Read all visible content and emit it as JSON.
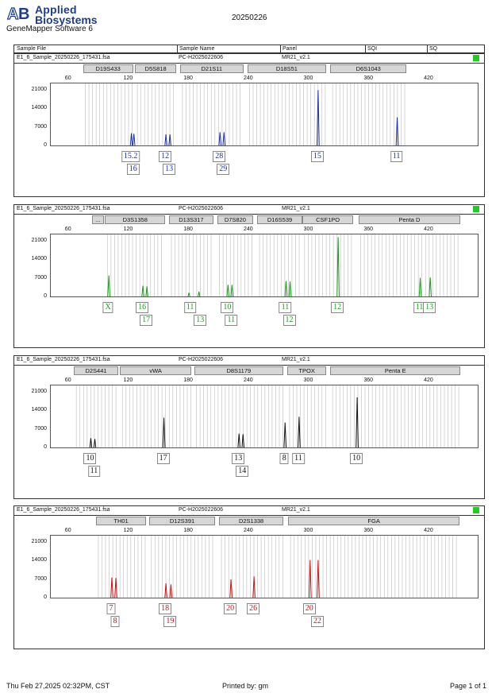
{
  "header": {
    "brand_line1": "Applied",
    "brand_line2": "Biosystems",
    "software": "GeneMapper Software 6",
    "title": "20250226"
  },
  "table_header": {
    "sample_file": "Sample File",
    "sample_name": "Sample Name",
    "panel": "Panel",
    "sqi": "SQI",
    "sq": "SQ"
  },
  "x_axis": {
    "ticks": [
      60,
      120,
      180,
      240,
      300,
      360,
      420
    ],
    "range": [
      42,
      470
    ]
  },
  "y_axis": {
    "ticks": [
      "21000",
      "14000",
      "7000",
      "0"
    ],
    "max": 24000
  },
  "panels": [
    {
      "file": "E1_6_Sample_20250226_175431.fsa",
      "name": "PC-H2025022606",
      "panel": "MR21_v2.1",
      "sq": true,
      "color": "#1a2faa",
      "markers": [
        {
          "label": "D19S433",
          "start": 75,
          "end": 125
        },
        {
          "label": "D5S818",
          "start": 127,
          "end": 168
        },
        {
          "label": "D21S11",
          "start": 172,
          "end": 235
        },
        {
          "label": "D18S51",
          "start": 239,
          "end": 318
        },
        {
          "label": "D6S1043",
          "start": 322,
          "end": 398
        }
      ],
      "peaks": [
        {
          "bp": 122.5,
          "h": 5200
        },
        {
          "bp": 125,
          "h": 5000
        },
        {
          "bp": 157,
          "h": 4800
        },
        {
          "bp": 161,
          "h": 4800
        },
        {
          "bp": 211,
          "h": 5600
        },
        {
          "bp": 215,
          "h": 5600
        },
        {
          "bp": 309,
          "h": 21500
        },
        {
          "bp": 388,
          "h": 11200
        }
      ],
      "alleles": [
        {
          "label": "15.2",
          "bp": 122.5,
          "row": 0
        },
        {
          "label": "16",
          "bp": 125,
          "row": 1
        },
        {
          "label": "12",
          "bp": 157,
          "row": 0
        },
        {
          "label": "13",
          "bp": 161,
          "row": 1
        },
        {
          "label": "28",
          "bp": 211,
          "row": 0
        },
        {
          "label": "29",
          "bp": 215,
          "row": 1
        },
        {
          "label": "15",
          "bp": 309,
          "row": 0
        },
        {
          "label": "11",
          "bp": 388,
          "row": 0
        }
      ]
    },
    {
      "file": "E1_6_Sample_20250226_175431.fsa",
      "name": "PC-H2025022606",
      "panel": "MR21_v2.1",
      "sq": true,
      "color": "#1a9a1a",
      "markers": [
        {
          "label": "...",
          "start": 84,
          "end": 96
        },
        {
          "label": "D3S1358",
          "start": 97,
          "end": 157
        },
        {
          "label": "D13S317",
          "start": 161,
          "end": 205
        },
        {
          "label": "D7S820",
          "start": 209,
          "end": 245
        },
        {
          "label": "D16S539",
          "start": 249,
          "end": 294
        },
        {
          "label": "CSF1PO",
          "start": 294,
          "end": 345
        },
        {
          "label": "Penta D",
          "start": 350,
          "end": 452
        }
      ],
      "peaks": [
        {
          "bp": 100,
          "h": 8500
        },
        {
          "bp": 134,
          "h": 4600
        },
        {
          "bp": 138,
          "h": 4400
        },
        {
          "bp": 180,
          "h": 2000
        },
        {
          "bp": 190,
          "h": 2400
        },
        {
          "bp": 219,
          "h": 5000
        },
        {
          "bp": 223,
          "h": 5000
        },
        {
          "bp": 277,
          "h": 6400
        },
        {
          "bp": 281,
          "h": 6200
        },
        {
          "bp": 329,
          "h": 23000
        },
        {
          "bp": 411,
          "h": 7600
        },
        {
          "bp": 421,
          "h": 7800
        }
      ],
      "alleles": [
        {
          "label": "X",
          "bp": 100,
          "row": 0
        },
        {
          "label": "16",
          "bp": 134,
          "row": 0
        },
        {
          "label": "17",
          "bp": 138,
          "row": 1
        },
        {
          "label": "11",
          "bp": 182,
          "row": 0
        },
        {
          "label": "13",
          "bp": 192,
          "row": 1
        },
        {
          "label": "10",
          "bp": 219,
          "row": 0
        },
        {
          "label": "11",
          "bp": 223,
          "row": 1
        },
        {
          "label": "11",
          "bp": 277,
          "row": 0
        },
        {
          "label": "12",
          "bp": 281,
          "row": 1
        },
        {
          "label": "12",
          "bp": 329,
          "row": 0
        },
        {
          "label": "11",
          "bp": 411,
          "row": 0
        },
        {
          "label": "13",
          "bp": 421,
          "row": 0
        }
      ]
    },
    {
      "file": "E1_6_Sample_20250226_175431.fsa",
      "name": "PC-H2025022606",
      "panel": "MR21_v2.1",
      "sq": false,
      "color": "#111111",
      "markers": [
        {
          "label": "D2S441",
          "start": 66,
          "end": 110
        },
        {
          "label": "vWA",
          "start": 112,
          "end": 183
        },
        {
          "label": "D8S1179",
          "start": 186,
          "end": 275
        },
        {
          "label": "TPOX",
          "start": 279,
          "end": 318
        },
        {
          "label": "Penta E",
          "start": 322,
          "end": 452
        }
      ],
      "peaks": [
        {
          "bp": 82,
          "h": 4100
        },
        {
          "bp": 86,
          "h": 3800
        },
        {
          "bp": 155,
          "h": 11800
        },
        {
          "bp": 230,
          "h": 5800
        },
        {
          "bp": 234,
          "h": 5600
        },
        {
          "bp": 276,
          "h": 10000
        },
        {
          "bp": 290,
          "h": 12200
        },
        {
          "bp": 348,
          "h": 19500
        }
      ],
      "alleles": [
        {
          "label": "10",
          "bp": 82,
          "row": 0
        },
        {
          "label": "11",
          "bp": 86,
          "row": 1
        },
        {
          "label": "17",
          "bp": 155,
          "row": 0
        },
        {
          "label": "13",
          "bp": 230,
          "row": 0
        },
        {
          "label": "14",
          "bp": 234,
          "row": 1
        },
        {
          "label": "8",
          "bp": 276,
          "row": 0
        },
        {
          "label": "11",
          "bp": 290,
          "row": 0
        },
        {
          "label": "10",
          "bp": 348,
          "row": 0
        }
      ]
    },
    {
      "file": "E1_6_Sample_20250226_175431.fsa",
      "name": "PC-H2025022606",
      "panel": "MR21_v2.1",
      "sq": true,
      "color": "#cc1111",
      "markers": [
        {
          "label": "TH01",
          "start": 88,
          "end": 138
        },
        {
          "label": "D12S391",
          "start": 141,
          "end": 207
        },
        {
          "label": "D2S1338",
          "start": 211,
          "end": 275
        },
        {
          "label": "FGA",
          "start": 280,
          "end": 451
        }
      ],
      "peaks": [
        {
          "bp": 103,
          "h": 8200
        },
        {
          "bp": 107,
          "h": 8000
        },
        {
          "bp": 157,
          "h": 6000
        },
        {
          "bp": 162,
          "h": 5600
        },
        {
          "bp": 222,
          "h": 7500
        },
        {
          "bp": 245,
          "h": 8600
        },
        {
          "bp": 301,
          "h": 14800
        },
        {
          "bp": 309,
          "h": 14800
        }
      ],
      "alleles": [
        {
          "label": "7",
          "bp": 103,
          "row": 0
        },
        {
          "label": "8",
          "bp": 107,
          "row": 1
        },
        {
          "label": "18",
          "bp": 157,
          "row": 0
        },
        {
          "label": "19",
          "bp": 162,
          "row": 1
        },
        {
          "label": "20",
          "bp": 222,
          "row": 0
        },
        {
          "label": "26",
          "bp": 245,
          "row": 0
        },
        {
          "label": "20",
          "bp": 301,
          "row": 0
        },
        {
          "label": "22",
          "bp": 309,
          "row": 1
        }
      ]
    }
  ],
  "footer": {
    "date": "Thu Feb 27,2025 02:32PM, CST",
    "printed_by": "Printed by: gm",
    "page": "Page 1 of 1"
  }
}
